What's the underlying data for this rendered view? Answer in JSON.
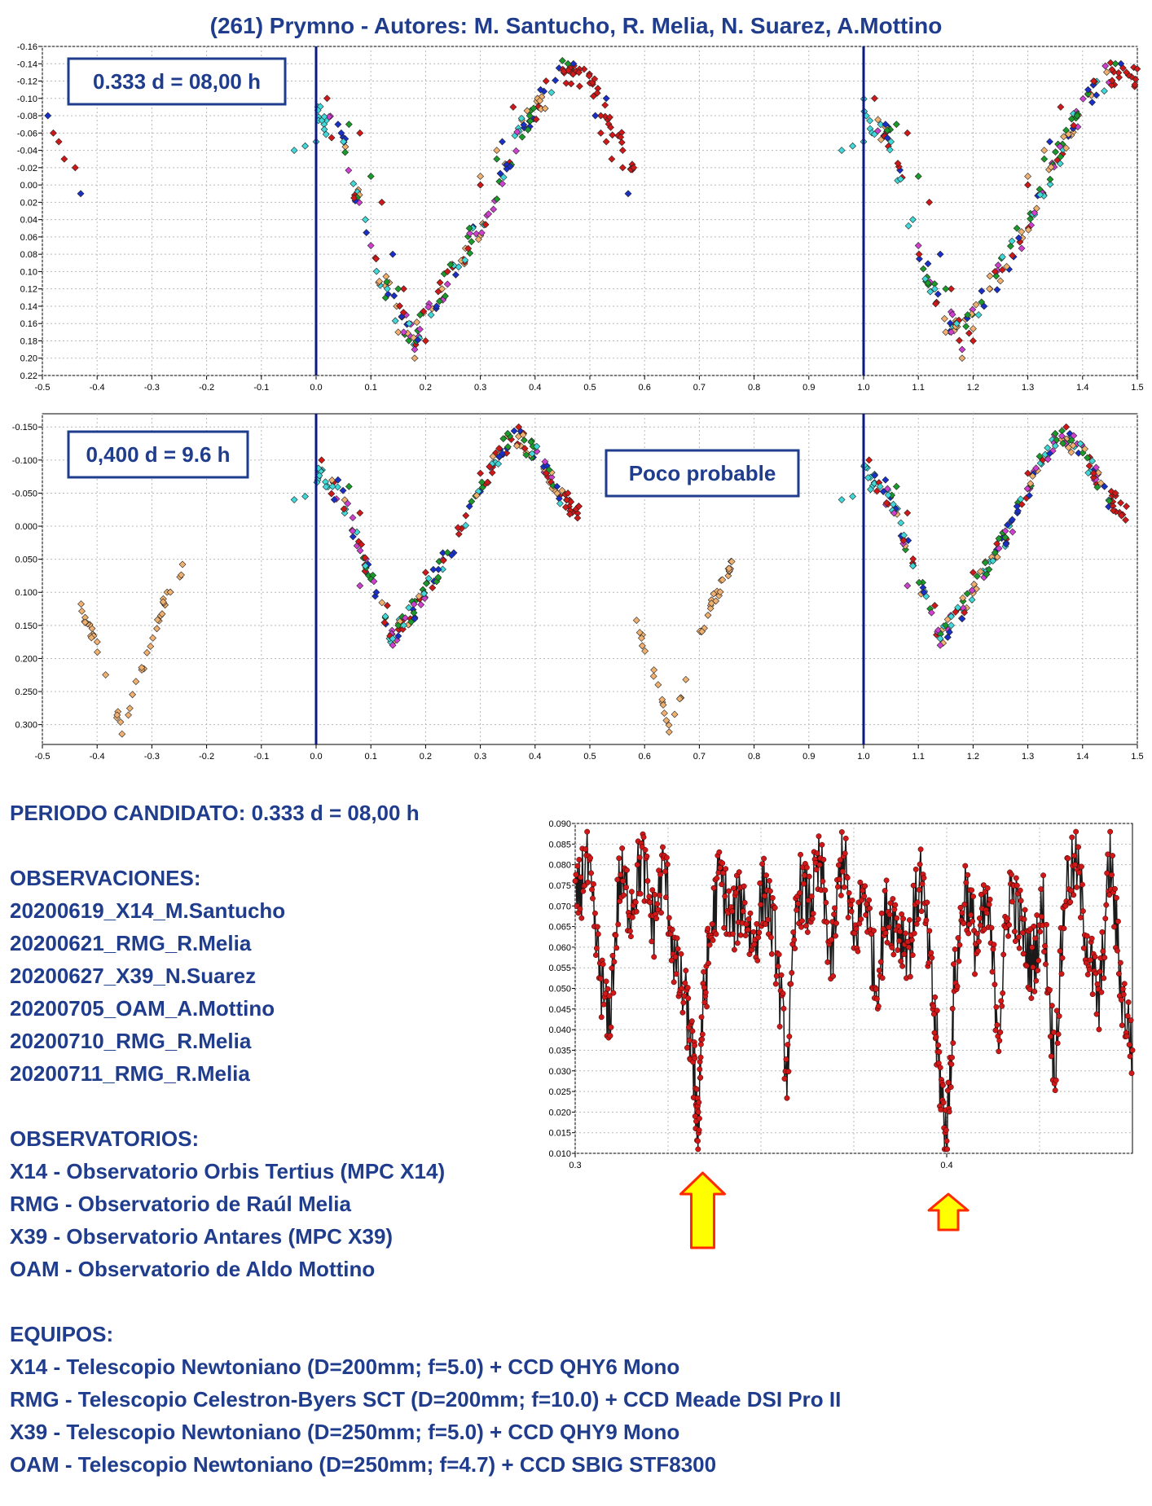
{
  "title": "(261) Prymno - Autores: M. Santucho, R. Melia, N. Suarez, A.Mottino",
  "colors": {
    "title_text": "#1f3d8c",
    "vertical_lines": "#0a1a80",
    "series_red": "#d01818",
    "series_blue": "#1830c8",
    "series_green": "#1a9a2a",
    "series_cyan": "#40d8d8",
    "series_orange": "#f0b070",
    "series_magenta": "#d040d0",
    "periodogram": "#d01818",
    "arrow_fill": "#ffff00",
    "arrow_stroke": "#ff2a00"
  },
  "chart_data": [
    {
      "type": "scatter",
      "label_box": "0.333 d = 08,00 h",
      "xlim": [
        -0.5,
        1.5
      ],
      "ylim": [
        -0.16,
        0.22
      ],
      "y_inverted": true,
      "x_ticks": [
        "-0.5",
        "-0.4",
        "-0.3",
        "-0.2",
        "-0.1",
        "0.0",
        "0.1",
        "0.2",
        "0.3",
        "0.4",
        "0.5",
        "0.6",
        "0.7",
        "0.8",
        "0.9",
        "1.0",
        "1.1",
        "1.2",
        "1.3",
        "1.4",
        "1.5"
      ],
      "y_ticks": [
        "-0.16",
        "-0.14",
        "-0.12",
        "-0.10",
        "-0.08",
        "-0.06",
        "-0.04",
        "-0.02",
        "0.00",
        "0.02",
        "0.04",
        "0.06",
        "0.08",
        "0.10",
        "0.12",
        "0.14",
        "0.16",
        "0.18",
        "0.20",
        "0.22"
      ],
      "vertical_lines": [
        0.0,
        1.0
      ],
      "phased_curve": [
        [
          0.0,
          -0.085
        ],
        [
          0.05,
          -0.05
        ],
        [
          0.1,
          0.08
        ],
        [
          0.15,
          0.15
        ],
        [
          0.18,
          0.175
        ],
        [
          0.22,
          0.13
        ],
        [
          0.3,
          0.05
        ],
        [
          0.38,
          -0.07
        ],
        [
          0.45,
          -0.13
        ],
        [
          0.5,
          -0.12
        ],
        [
          0.55,
          -0.06
        ],
        [
          0.58,
          -0.02
        ]
      ],
      "series": [
        {
          "color": "red",
          "points": [
            [
              -0.48,
              -0.06
            ],
            [
              -0.47,
              -0.05
            ],
            [
              -0.46,
              -0.03
            ],
            [
              -0.44,
              -0.02
            ],
            [
              0.02,
              -0.1
            ],
            [
              0.08,
              -0.06
            ],
            [
              0.12,
              0.02
            ],
            [
              0.16,
              0.12
            ],
            [
              0.2,
              0.18
            ],
            [
              0.24,
              0.1
            ],
            [
              0.3,
              0.0
            ],
            [
              0.36,
              -0.09
            ],
            [
              0.42,
              -0.12
            ],
            [
              0.48,
              -0.13
            ],
            [
              0.52,
              -0.08
            ],
            [
              0.56,
              -0.04
            ],
            [
              0.58,
              -0.02
            ]
          ]
        },
        {
          "color": "blue",
          "points": [
            [
              -0.49,
              -0.08
            ],
            [
              -0.43,
              0.01
            ],
            [
              0.04,
              -0.07
            ],
            [
              0.14,
              0.08
            ],
            [
              0.22,
              0.14
            ],
            [
              0.34,
              -0.05
            ],
            [
              0.41,
              -0.11
            ],
            [
              0.47,
              -0.14
            ],
            [
              0.53,
              -0.1
            ]
          ]
        },
        {
          "color": "green",
          "points": [
            [
              0.06,
              -0.07
            ],
            [
              0.1,
              -0.01
            ],
            [
              0.15,
              0.12
            ],
            [
              0.19,
              0.15
            ],
            [
              0.28,
              0.05
            ],
            [
              0.33,
              -0.03
            ],
            [
              0.39,
              -0.08
            ],
            [
              0.46,
              -0.14
            ]
          ]
        },
        {
          "color": "cyan",
          "points": [
            [
              -0.04,
              -0.04
            ],
            [
              -0.02,
              -0.045
            ],
            [
              0.0,
              -0.05
            ],
            [
              0.05,
              -0.05
            ],
            [
              0.09,
              0.04
            ],
            [
              0.13,
              0.12
            ],
            [
              0.17,
              0.16
            ],
            [
              0.21,
              0.15
            ]
          ]
        },
        {
          "color": "orange",
          "points": [
            [
              0.15,
              0.17
            ],
            [
              0.18,
              0.2
            ],
            [
              0.23,
              0.12
            ],
            [
              0.3,
              -0.01
            ],
            [
              0.33,
              -0.04
            ]
          ]
        },
        {
          "color": "magenta",
          "points": [
            [
              0.1,
              0.07
            ],
            [
              0.16,
              0.17
            ],
            [
              0.18,
              0.19
            ]
          ]
        }
      ]
    },
    {
      "type": "scatter",
      "label_box": "0,400 d = 9.6 h",
      "annotation": "Poco probable",
      "xlim": [
        -0.5,
        1.5
      ],
      "ylim": [
        -0.17,
        0.33
      ],
      "y_inverted": true,
      "x_ticks": [
        "-0.5",
        "-0.4",
        "-0.3",
        "-0.2",
        "-0.1",
        "0.0",
        "0.1",
        "0.2",
        "0.3",
        "0.4",
        "0.5",
        "0.6",
        "0.7",
        "0.8",
        "0.9",
        "1.0",
        "1.1",
        "1.2",
        "1.3",
        "1.4",
        "1.5"
      ],
      "y_ticks": [
        "-0.150",
        "-0.100",
        "-0.050",
        "0.000",
        "0.050",
        "0.100",
        "0.150",
        "0.200",
        "0.250",
        "0.300"
      ],
      "vertical_lines": [
        0.0,
        1.0
      ],
      "phased_curve": [
        [
          0.0,
          -0.08
        ],
        [
          0.05,
          -0.04
        ],
        [
          0.1,
          0.08
        ],
        [
          0.14,
          0.17
        ],
        [
          0.2,
          0.1
        ],
        [
          0.27,
          0.0
        ],
        [
          0.32,
          -0.09
        ],
        [
          0.36,
          -0.14
        ],
        [
          0.4,
          -0.11
        ],
        [
          0.45,
          -0.04
        ],
        [
          0.48,
          -0.02
        ]
      ],
      "secondary_curve": [
        [
          -0.43,
          0.12
        ],
        [
          -0.39,
          0.2
        ],
        [
          -0.355,
          0.31
        ],
        [
          -0.32,
          0.22
        ],
        [
          -0.28,
          0.12
        ],
        [
          -0.24,
          0.06
        ]
      ],
      "series": [
        {
          "color": "red",
          "points": [
            [
              0.01,
              -0.1
            ],
            [
              0.08,
              -0.02
            ],
            [
              0.13,
              0.12
            ],
            [
              0.2,
              0.07
            ],
            [
              0.3,
              -0.08
            ],
            [
              0.37,
              -0.15
            ],
            [
              0.42,
              -0.08
            ],
            [
              0.46,
              -0.05
            ],
            [
              0.48,
              -0.03
            ]
          ]
        },
        {
          "color": "blue",
          "points": [
            [
              0.04,
              -0.07
            ],
            [
              0.11,
              0.1
            ],
            [
              0.18,
              0.14
            ],
            [
              0.28,
              -0.03
            ],
            [
              0.34,
              -0.11
            ],
            [
              0.44,
              -0.06
            ]
          ]
        },
        {
          "color": "green",
          "points": [
            [
              0.06,
              -0.06
            ],
            [
              0.15,
              0.15
            ],
            [
              0.24,
              0.04
            ],
            [
              0.35,
              -0.14
            ],
            [
              0.38,
              -0.13
            ]
          ]
        },
        {
          "color": "cyan",
          "points": [
            [
              -0.04,
              -0.04
            ],
            [
              -0.02,
              -0.045
            ],
            [
              0.03,
              -0.06
            ],
            [
              0.09,
              0.06
            ],
            [
              0.14,
              0.17
            ],
            [
              0.16,
              0.15
            ]
          ]
        },
        {
          "color": "magenta",
          "points": [
            [
              0.08,
              0.09
            ],
            [
              0.14,
              0.18
            ]
          ]
        }
      ]
    },
    {
      "type": "line",
      "title": "",
      "xlim": [
        0.3,
        0.45
      ],
      "ylim": [
        0.01,
        0.09
      ],
      "x_ticks": [
        "0.3",
        "0.4"
      ],
      "y_ticks": [
        "0.010",
        "0.015",
        "0.020",
        "0.025",
        "0.030",
        "0.035",
        "0.040",
        "0.045",
        "0.050",
        "0.055",
        "0.060",
        "0.065",
        "0.070",
        "0.075",
        "0.080",
        "0.085",
        "0.090"
      ],
      "x": [
        0.3,
        0.303,
        0.306,
        0.309,
        0.312,
        0.315,
        0.318,
        0.321,
        0.324,
        0.327,
        0.33,
        0.332,
        0.333,
        0.334,
        0.336,
        0.339,
        0.342,
        0.345,
        0.348,
        0.351,
        0.354,
        0.357,
        0.36,
        0.363,
        0.366,
        0.369,
        0.372,
        0.375,
        0.378,
        0.381,
        0.384,
        0.387,
        0.39,
        0.393,
        0.396,
        0.398,
        0.4,
        0.402,
        0.405,
        0.408,
        0.411,
        0.414,
        0.417,
        0.42,
        0.423,
        0.426,
        0.429,
        0.432,
        0.435,
        0.438,
        0.441,
        0.444,
        0.447,
        0.45
      ],
      "values": [
        0.068,
        0.082,
        0.058,
        0.04,
        0.077,
        0.07,
        0.082,
        0.065,
        0.08,
        0.055,
        0.045,
        0.03,
        0.014,
        0.04,
        0.06,
        0.078,
        0.065,
        0.072,
        0.06,
        0.075,
        0.06,
        0.03,
        0.075,
        0.07,
        0.08,
        0.055,
        0.085,
        0.06,
        0.075,
        0.05,
        0.07,
        0.065,
        0.06,
        0.078,
        0.05,
        0.03,
        0.013,
        0.05,
        0.075,
        0.06,
        0.07,
        0.04,
        0.075,
        0.065,
        0.055,
        0.07,
        0.03,
        0.075,
        0.08,
        0.06,
        0.045,
        0.082,
        0.05,
        0.035
      ],
      "markers": [
        0.333,
        0.4
      ]
    }
  ],
  "info": {
    "period": "PERIODO CANDIDATO: 0.333 d = 08,00 h",
    "observaciones_heading": "OBSERVACIONES:",
    "observaciones": [
      "20200619_X14_M.Santucho",
      "20200621_RMG_R.Melia",
      "20200627_X39_N.Suarez",
      "20200705_OAM_A.Mottino",
      "20200710_RMG_R.Melia",
      "20200711_RMG_R.Melia"
    ],
    "observatorios_heading": "OBSERVATORIOS:",
    "observatorios": [
      "X14 - Observatorio Orbis Tertius (MPC X14)",
      "RMG - Observatorio de Raúl Melia",
      "X39 - Observatorio Antares (MPC X39)",
      "OAM - Observatorio de Aldo Mottino"
    ],
    "equipos_heading": "EQUIPOS:",
    "equipos": [
      "X14 - Telescopio Newtoniano (D=200mm; f=5.0) + CCD QHY6 Mono",
      "RMG - Telescopio Celestron-Byers SCT (D=200mm; f=10.0) + CCD Meade DSI Pro II",
      "X39 - Telescopio Newtoniano (D=250mm; f=5.0) + CCD QHY9 Mono",
      "OAM - Telescopio Newtoniano (D=250mm; f=4.7) + CCD SBIG STF8300"
    ]
  }
}
